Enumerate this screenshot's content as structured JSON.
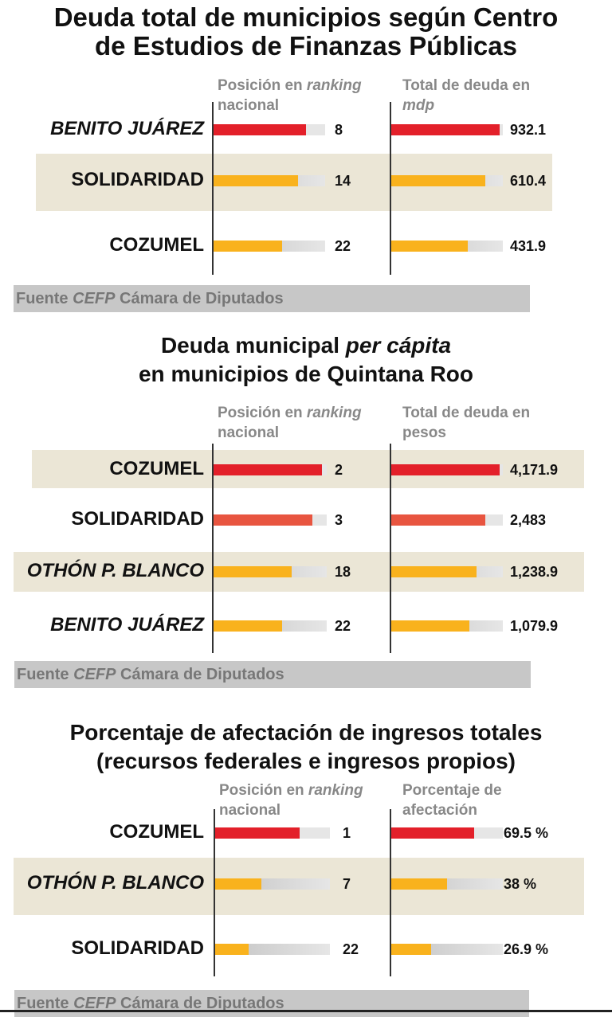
{
  "colors": {
    "red": "#e3202a",
    "coral": "#e85540",
    "yellow": "#f9b21d",
    "track_light": "#e6e6e6",
    "track_dark": "#c2c2c2",
    "band": "#ebe6d6",
    "source_bg": "#c7c7c7"
  },
  "chart_data": [
    {
      "type": "bar",
      "title": "Deuda total de municipios según Centro de Estudios de Finanzas Públicas",
      "title_lines": [
        "Deuda total de municipios según Centro",
        "de Estudios de Finanzas Públicas"
      ],
      "columns": [
        {
          "label_parts": [
            "Posición en ",
            "ranking",
            " nacional"
          ],
          "key": "ranking"
        },
        {
          "label_parts": [
            "Total de deuda en ",
            "mdp",
            ""
          ],
          "key": "deuda"
        }
      ],
      "categories": [
        "BENITO JUÁREZ",
        "SOLIDARIDAD",
        "COZUMEL"
      ],
      "series": [
        {
          "name": "Posición en ranking nacional",
          "values": [
            8,
            14,
            22
          ],
          "labels": [
            "8",
            "14",
            "22"
          ]
        },
        {
          "name": "Total de deuda en mdp",
          "values": [
            932.1,
            610.4,
            431.9
          ],
          "labels": [
            "932.1",
            "610.4",
            "431.9"
          ]
        }
      ],
      "bar_colors": [
        "red",
        "yellow",
        "yellow"
      ],
      "highlighted_rows": [
        1
      ],
      "source_parts": [
        "Fuente ",
        "CEFP",
        " Cámara de Diputados"
      ]
    },
    {
      "type": "bar",
      "title": "Deuda municipal per cápita en municipios de Quintana Roo",
      "title_lines": [
        "Deuda municipal per cápita",
        "en municipios de Quintana Roo"
      ],
      "columns": [
        {
          "label_parts": [
            "Posición en ",
            "ranking",
            " nacional"
          ],
          "key": "ranking"
        },
        {
          "label_parts": [
            "Total de deuda en pesos",
            "",
            ""
          ],
          "key": "deuda"
        }
      ],
      "categories": [
        "COZUMEL",
        "SOLIDARIDAD",
        "OTHÓN P. BLANCO",
        "BENITO JUÁREZ"
      ],
      "series": [
        {
          "name": "Posición en ranking nacional",
          "values": [
            2,
            3,
            18,
            22
          ],
          "labels": [
            "2",
            "3",
            "18",
            "22"
          ]
        },
        {
          "name": "Total de deuda en pesos",
          "values": [
            4171.9,
            2483,
            1238.9,
            1079.9
          ],
          "labels": [
            "4,171.9",
            "2,483",
            "1,238.9",
            "1,079.9"
          ]
        }
      ],
      "bar_colors": [
        "red",
        "coral",
        "yellow",
        "yellow"
      ],
      "highlighted_rows": [
        0,
        2
      ],
      "source_parts": [
        "Fuente ",
        "CEFP",
        " Cámara de Diputados"
      ]
    },
    {
      "type": "bar",
      "title": "Porcentaje de afectación de ingresos totales (recursos federales e ingresos propios)",
      "title_lines": [
        "Porcentaje de afectación de ingresos totales",
        "(recursos federales e ingresos propios)"
      ],
      "columns": [
        {
          "label_parts": [
            "Posición en ",
            "ranking",
            " nacional"
          ],
          "key": "ranking"
        },
        {
          "label_parts": [
            "Porcentaje de afectación",
            "",
            ""
          ],
          "key": "porcentaje"
        }
      ],
      "categories": [
        "COZUMEL",
        "OTHÓN P. BLANCO",
        "SOLIDARIDAD"
      ],
      "series": [
        {
          "name": "Posición en ranking nacional",
          "values": [
            1,
            7,
            22
          ],
          "labels": [
            "1",
            "7",
            "22"
          ]
        },
        {
          "name": "Porcentaje de afectación",
          "values": [
            69.5,
            38,
            26.9
          ],
          "labels": [
            "69.5 %",
            "38 %",
            "26.9 %"
          ]
        }
      ],
      "bar_colors": [
        "red",
        "yellow",
        "yellow"
      ],
      "highlighted_rows": [
        1
      ],
      "source_parts": [
        "Fuente ",
        "CEFP",
        " Cámara de Diputados"
      ]
    }
  ]
}
